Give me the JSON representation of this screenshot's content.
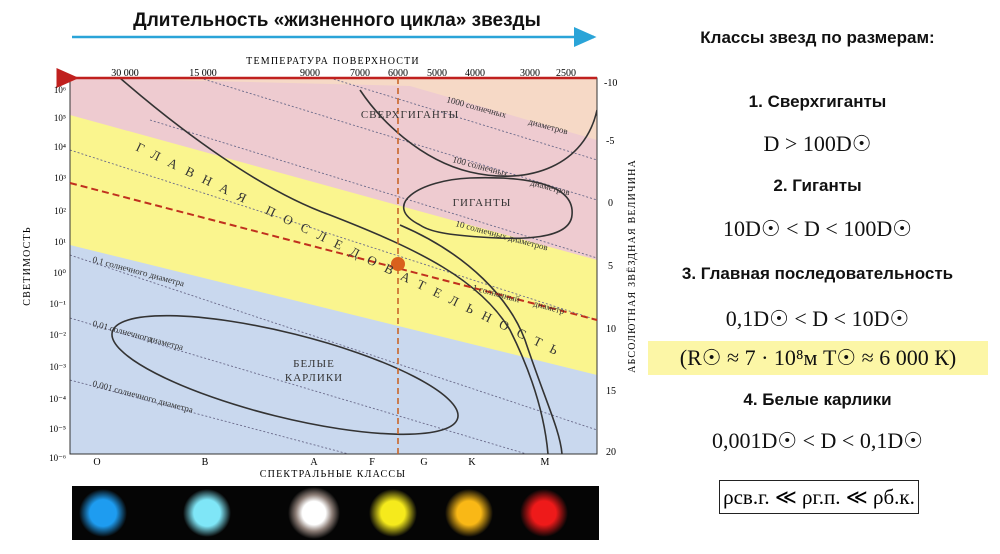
{
  "top_title": "Длительность «жизненного цикла» звезды",
  "diagram": {
    "top_axis_title": "ТЕМПЕРАТУРА ПОВЕРХНОСТИ",
    "top_ticks": [
      "30 000",
      "15 000",
      "9000",
      "7000",
      "6000",
      "5000",
      "4000",
      "3000",
      "2500"
    ],
    "left_axis_title": "СВЕТИМОСТЬ",
    "left_ticks": [
      "10⁶",
      "10⁵",
      "10⁴",
      "10³",
      "10²",
      "10¹",
      "10⁰",
      "10⁻¹",
      "10⁻²",
      "10⁻³",
      "10⁻⁴",
      "10⁻⁵",
      "10⁻⁶"
    ],
    "right_axis_title": "АБСОЛЮТНАЯ ЗВЁЗДНАЯ ВЕЛИЧИНА",
    "right_ticks": [
      "-10",
      "-5",
      "0",
      "5",
      "10",
      "15",
      "20"
    ],
    "bottom_axis_title": "СПЕКТРАЛЬНЫЕ КЛАССЫ",
    "bottom_ticks": [
      "O",
      "B",
      "A",
      "F",
      "G",
      "K",
      "M"
    ],
    "region_supergiants": "СВЕРХГИГАНТЫ",
    "region_giants": "ГИГАНТЫ",
    "region_main_sequence": "ГЛАВНАЯ ПОСЛЕДОВАТЕЛЬНОСТЬ",
    "region_white_dwarfs_1": "БЕЛЫЕ",
    "region_white_dwarfs_2": "КАРЛИКИ",
    "diam_1000_a": "1000 солнечных",
    "diam_1000_b": "диаметров",
    "diam_100_a": "100 солнечных",
    "diam_100_b": "диаметров",
    "diam_10": "10 солнечных диаметров",
    "diam_1_a": "1 солнечный",
    "diam_1_b": "диаметр",
    "diam_01": "0,1 солнечного диаметра",
    "diam_001_a": "0,01 солнечного",
    "diam_001_b": "диаметра",
    "diam_0001": "0,001 солнечного диаметра",
    "colors": {
      "supergiant_zone": "#f6d9c6",
      "giant_zone": "#eecbd0",
      "main_zone": "#faf58e",
      "dwarf_zone": "#c9d8ee",
      "arrow_blue": "#2aa4d8",
      "arrow_red": "#c0201e",
      "sun": "#d9601c"
    }
  },
  "star_colors": [
    {
      "name": "O",
      "color": "#1e9cf0"
    },
    {
      "name": "B",
      "color": "#7fe6f7"
    },
    {
      "name": "A",
      "color": "#ffffff"
    },
    {
      "name": "F",
      "color": "#f5ea1c"
    },
    {
      "name": "G/K",
      "color": "#f9b816"
    },
    {
      "name": "M",
      "color": "#ee1a1a"
    }
  ],
  "classes": {
    "heading": "Классы звезд по размерам:",
    "c1_name": "1. Сверхгиганты",
    "c1_formula": "D > 100D☉",
    "c2_name": "2. Гиганты",
    "c2_formula": "10D☉ < D < 100D☉",
    "c3_name": "3. Главная последовательность",
    "c3_formula": "0,1D☉ < D < 10D☉",
    "sun_params": "(R☉ ≈ 7 · 10⁸м   T☉ ≈ 6 000 К)",
    "c4_name": "4. Белые карлики",
    "c4_formula": "0,001D☉ < D < 0,1D☉",
    "density": "ρсв.г. ≪ ρг.п. ≪ ρб.к."
  }
}
